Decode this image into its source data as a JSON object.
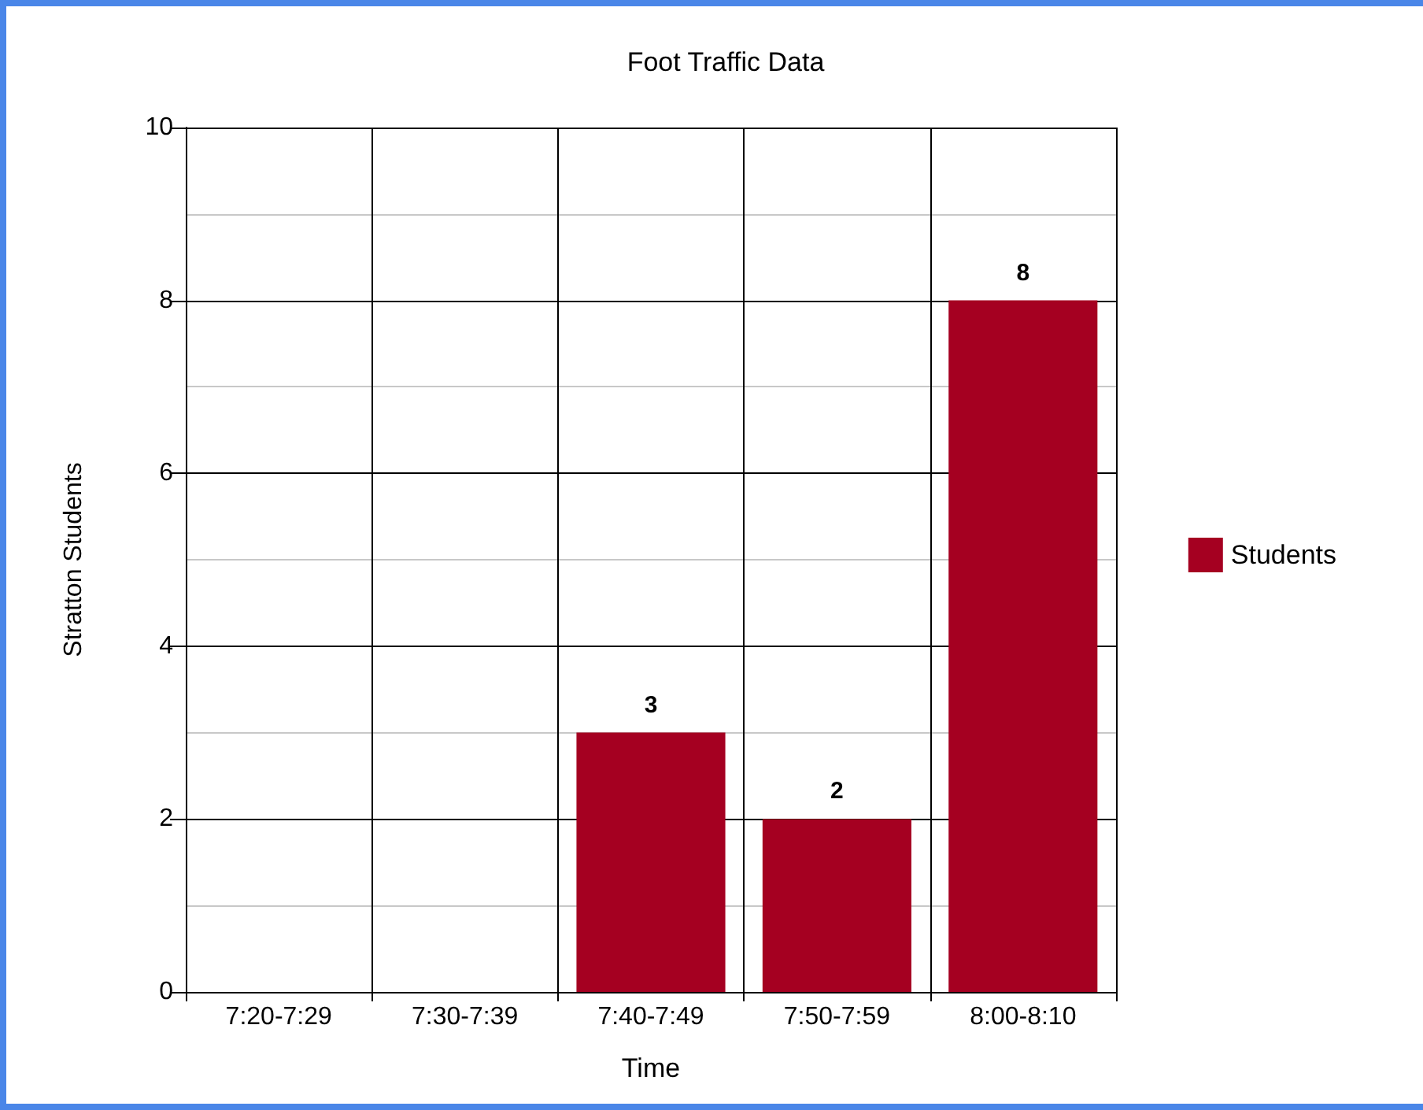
{
  "chart_data": {
    "type": "bar",
    "title": "Foot Traffic Data",
    "xlabel": "Time",
    "ylabel": "Stratton Students",
    "categories": [
      "7:20-7:29",
      "7:30-7:39",
      "7:40-7:49",
      "7:50-7:59",
      "8:00-8:10"
    ],
    "series": [
      {
        "name": "Students",
        "color": "#a50021",
        "values": [
          0,
          0,
          3,
          2,
          8
        ],
        "value_labels": [
          null,
          null,
          "3",
          "2",
          "8"
        ]
      }
    ],
    "ylim": [
      0,
      10
    ],
    "yticks": [
      0,
      2,
      4,
      6,
      8,
      10
    ],
    "grid": true,
    "legend": "right"
  }
}
